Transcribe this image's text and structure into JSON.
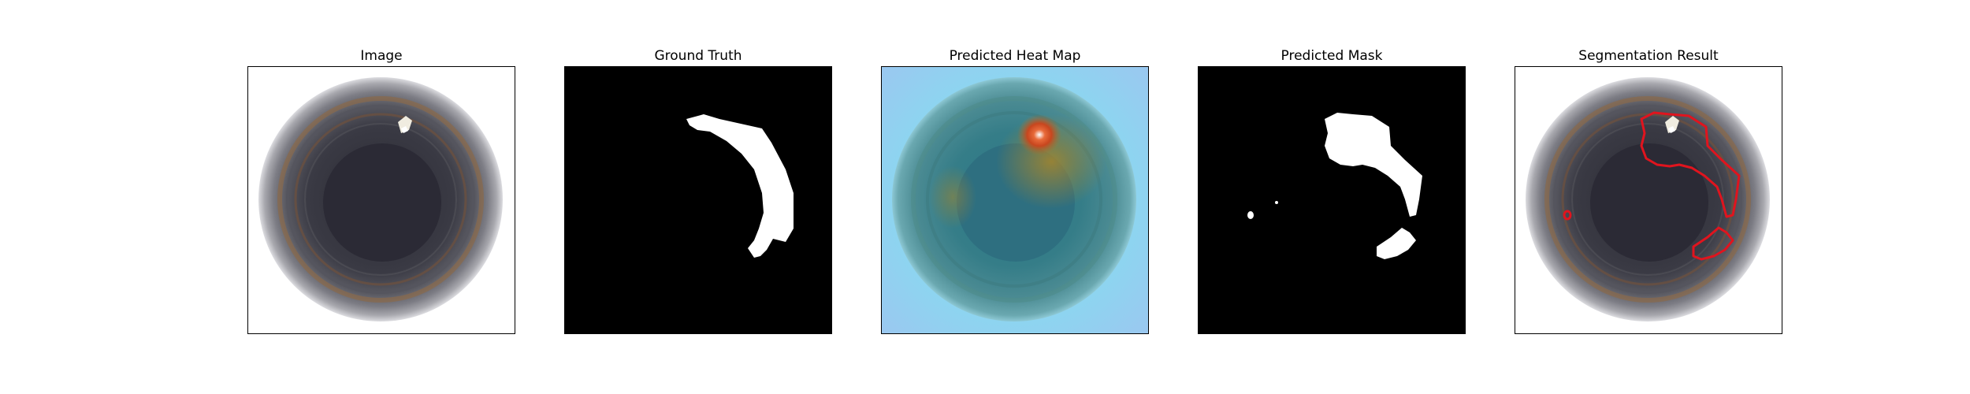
{
  "figure": {
    "panels": [
      {
        "title": "Image"
      },
      {
        "title": "Ground Truth"
      },
      {
        "title": "Predicted Heat Map"
      },
      {
        "title": "Predicted Mask"
      },
      {
        "title": "Segmentation Result"
      }
    ]
  },
  "colors": {
    "background": "#ffffff",
    "mask_foreground": "#ffffff",
    "mask_background": "#000000",
    "contour": "#e0141e",
    "heat_low": "#8fd3f0",
    "heat_high": "#c8461e"
  }
}
